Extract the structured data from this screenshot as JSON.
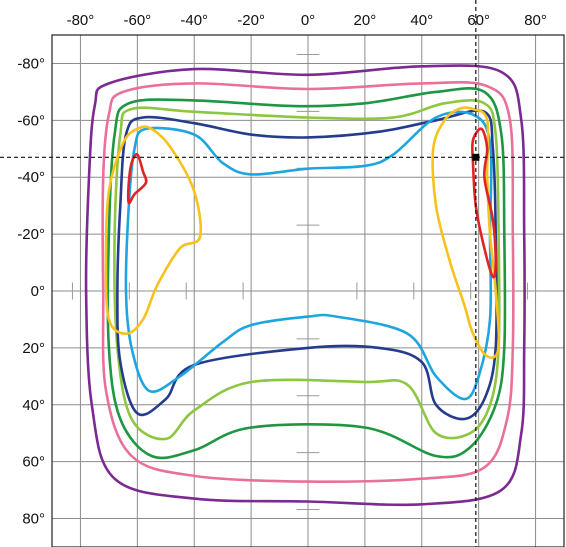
{
  "chart_data": {
    "type": "line",
    "title": "",
    "xlabel": "",
    "ylabel": "",
    "xlim": [
      -90,
      90
    ],
    "ylim": [
      -90,
      90
    ],
    "y_inverted": true,
    "grid": true,
    "x_ticks": [
      -80,
      -60,
      -40,
      -20,
      0,
      20,
      40,
      60,
      80
    ],
    "x_tick_labels": [
      "-80°",
      "-60°",
      "-40°",
      "-20°",
      "0°",
      "20°",
      "40°",
      "60°",
      "80°"
    ],
    "y_ticks": [
      -80,
      -60,
      -40,
      -20,
      0,
      20,
      40,
      60,
      80
    ],
    "y_tick_labels": [
      "-80°",
      "-60°",
      "-40°",
      "-20°",
      "0°",
      "20°",
      "40°",
      "60°",
      "80°"
    ],
    "crosshair": {
      "x": 59,
      "y": -47
    },
    "series": [
      {
        "color": "#7b2a92",
        "closed": true,
        "points": [
          [
            -70,
            -73
          ],
          [
            -40,
            -78
          ],
          [
            0,
            -76
          ],
          [
            40,
            -79
          ],
          [
            68,
            -77
          ],
          [
            75,
            -60
          ],
          [
            76,
            -20
          ],
          [
            76,
            20
          ],
          [
            75,
            50
          ],
          [
            68,
            70
          ],
          [
            40,
            75
          ],
          [
            0,
            74
          ],
          [
            -40,
            73
          ],
          [
            -68,
            66
          ],
          [
            -76,
            40
          ],
          [
            -78,
            0
          ],
          [
            -77,
            -40
          ],
          [
            -75,
            -65
          ]
        ]
      },
      {
        "color": "#e9709a",
        "closed": true,
        "points": [
          [
            -65,
            -70
          ],
          [
            -40,
            -73
          ],
          [
            0,
            -71
          ],
          [
            40,
            -73
          ],
          [
            63,
            -72
          ],
          [
            71,
            -60
          ],
          [
            72,
            -20
          ],
          [
            72,
            20
          ],
          [
            70,
            45
          ],
          [
            62,
            62
          ],
          [
            40,
            66
          ],
          [
            0,
            67
          ],
          [
            -40,
            65
          ],
          [
            -62,
            58
          ],
          [
            -71,
            35
          ],
          [
            -72,
            0
          ],
          [
            -72,
            -40
          ],
          [
            -70,
            -62
          ]
        ]
      },
      {
        "color": "#1e9642",
        "closed": true,
        "points": [
          [
            -63,
            -66
          ],
          [
            -40,
            -67
          ],
          [
            -5,
            -65
          ],
          [
            20,
            -66
          ],
          [
            45,
            -70
          ],
          [
            62,
            -70
          ],
          [
            68,
            -55
          ],
          [
            69,
            -20
          ],
          [
            69,
            20
          ],
          [
            66,
            40
          ],
          [
            57,
            55
          ],
          [
            45,
            58
          ],
          [
            20,
            48
          ],
          [
            -20,
            48
          ],
          [
            -40,
            56
          ],
          [
            -55,
            58
          ],
          [
            -66,
            45
          ],
          [
            -70,
            20
          ],
          [
            -70,
            -20
          ],
          [
            -68,
            -55
          ]
        ]
      },
      {
        "color": "#8dc63f",
        "closed": true,
        "points": [
          [
            -62,
            -64
          ],
          [
            -40,
            -63
          ],
          [
            0,
            -61
          ],
          [
            30,
            -61
          ],
          [
            48,
            -66
          ],
          [
            62,
            -66
          ],
          [
            66,
            -55
          ],
          [
            67,
            -20
          ],
          [
            67,
            20
          ],
          [
            64,
            40
          ],
          [
            57,
            50
          ],
          [
            45,
            50
          ],
          [
            35,
            33
          ],
          [
            20,
            32
          ],
          [
            -20,
            32
          ],
          [
            -40,
            42
          ],
          [
            -50,
            52
          ],
          [
            -62,
            45
          ],
          [
            -67,
            20
          ],
          [
            -68,
            -20
          ],
          [
            -66,
            -55
          ]
        ]
      },
      {
        "color": "#253b8c",
        "closed": true,
        "points": [
          [
            -58,
            -61
          ],
          [
            -40,
            -59
          ],
          [
            -20,
            -55
          ],
          [
            0,
            -54
          ],
          [
            25,
            -56
          ],
          [
            45,
            -60
          ],
          [
            62,
            -63
          ],
          [
            65,
            -50
          ],
          [
            66,
            -20
          ],
          [
            66,
            20
          ],
          [
            62,
            38
          ],
          [
            55,
            45
          ],
          [
            45,
            40
          ],
          [
            40,
            25
          ],
          [
            25,
            20
          ],
          [
            0,
            20
          ],
          [
            -40,
            26
          ],
          [
            -50,
            38
          ],
          [
            -60,
            43
          ],
          [
            -66,
            25
          ],
          [
            -67,
            0
          ],
          [
            -66,
            -30
          ],
          [
            -64,
            -55
          ]
        ]
      },
      {
        "color": "#1ea5e0",
        "closed": true,
        "points": [
          [
            -57,
            -57
          ],
          [
            -40,
            -55
          ],
          [
            -30,
            -45
          ],
          [
            -20,
            -41
          ],
          [
            0,
            -43
          ],
          [
            20,
            -44
          ],
          [
            30,
            -48
          ],
          [
            45,
            -61
          ],
          [
            58,
            -62
          ],
          [
            64,
            -52
          ],
          [
            64,
            -20
          ],
          [
            64,
            10
          ],
          [
            60,
            30
          ],
          [
            55,
            38
          ],
          [
            45,
            30
          ],
          [
            35,
            15
          ],
          [
            10,
            9
          ],
          [
            0,
            9
          ],
          [
            -20,
            12
          ],
          [
            -30,
            18
          ],
          [
            -45,
            30
          ],
          [
            -56,
            35
          ],
          [
            -62,
            20
          ],
          [
            -64,
            0
          ],
          [
            -63,
            -30
          ],
          [
            -61,
            -50
          ]
        ]
      },
      {
        "color": "#f7c21b",
        "closed": true,
        "points": [
          [
            -55,
            -57
          ],
          [
            -48,
            -50
          ],
          [
            -40,
            -35
          ],
          [
            -38,
            -19
          ],
          [
            -45,
            -15
          ],
          [
            -53,
            -2
          ],
          [
            -58,
            10
          ],
          [
            -64,
            15
          ],
          [
            -70,
            10
          ],
          [
            -71,
            -10
          ],
          [
            -70,
            -35
          ],
          [
            -65,
            -52
          ],
          [
            -60,
            -57
          ]
        ]
      },
      {
        "color": "#f7c21b",
        "closed": true,
        "points": [
          [
            58,
            -64
          ],
          [
            63,
            -60
          ],
          [
            63,
            -40
          ],
          [
            64,
            -20
          ],
          [
            66,
            0
          ],
          [
            67,
            20
          ],
          [
            63,
            23
          ],
          [
            58,
            15
          ],
          [
            55,
            5
          ],
          [
            50,
            -10
          ],
          [
            45,
            -30
          ],
          [
            44,
            -50
          ],
          [
            48,
            -60
          ],
          [
            53,
            -64
          ]
        ]
      },
      {
        "color": "#e02424",
        "closed": true,
        "points": [
          [
            -60,
            -48
          ],
          [
            -58,
            -42
          ],
          [
            -57,
            -38
          ],
          [
            -61,
            -34
          ],
          [
            -63,
            -31
          ],
          [
            -63,
            -38
          ],
          [
            -62,
            -45
          ]
        ]
      },
      {
        "color": "#e02424",
        "closed": true,
        "points": [
          [
            61,
            -57
          ],
          [
            63,
            -50
          ],
          [
            62,
            -40
          ],
          [
            65,
            -25
          ],
          [
            66,
            -10
          ],
          [
            65,
            -5
          ],
          [
            62,
            -15
          ],
          [
            59,
            -30
          ],
          [
            58,
            -45
          ],
          [
            58,
            -53
          ]
        ]
      }
    ]
  }
}
